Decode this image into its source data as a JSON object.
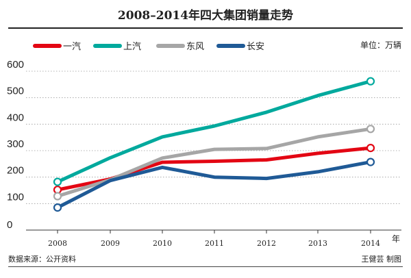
{
  "chart_data": {
    "type": "line",
    "title": "2008–2014年四大集团销量走势",
    "unit_label": "单位：万辆",
    "x": [
      "2008",
      "2009",
      "2010",
      "2011",
      "2012",
      "2013",
      "2014"
    ],
    "x_unit": "年",
    "yticks": [
      "0",
      "100",
      "200",
      "300",
      "400",
      "500",
      "600"
    ],
    "ylim": [
      0,
      600
    ],
    "grid": "horizontal",
    "legend_position": "top-left",
    "series": [
      {
        "name": "一汽",
        "color": "#e30613",
        "values": [
          152,
          193,
          256,
          260,
          265,
          290,
          310
        ]
      },
      {
        "name": "上汽",
        "color": "#00a99d",
        "values": [
          182,
          273,
          352,
          393,
          445,
          508,
          562
        ]
      },
      {
        "name": "东风",
        "color": "#a6a6a6",
        "values": [
          128,
          190,
          272,
          305,
          308,
          352,
          382
        ]
      },
      {
        "name": "长安",
        "color": "#1f5a96",
        "values": [
          85,
          187,
          237,
          200,
          195,
          220,
          257
        ]
      }
    ],
    "source": "数据来源：公开资料",
    "credit": "王健芸  制图"
  }
}
